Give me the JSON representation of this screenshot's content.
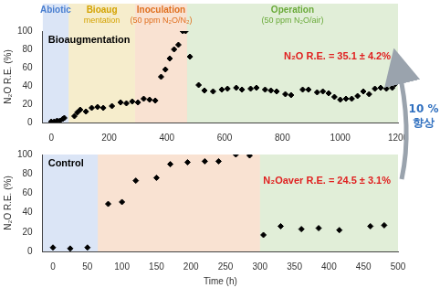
{
  "chart_data": [
    {
      "type": "scatter",
      "title": "Bioaugmentation",
      "y_label": "N₂O R.E. (%)",
      "annotation": "N₂O R.E. = 35.1 ± 4.2%",
      "phases": [
        {
          "name": [
            "Abiotic"
          ],
          "x": [
            -30,
            60
          ],
          "color": "#4a7fd0"
        },
        {
          "name": [
            "Bioaug",
            "mentation"
          ],
          "x": [
            60,
            290
          ],
          "color": "#d4a300"
        },
        {
          "name": [
            "Inoculation",
            "(50 ppm N₂O/N₂)"
          ],
          "x": [
            290,
            470
          ],
          "color": "#e07020"
        },
        {
          "name": [
            "Operation",
            "(50 ppm N₂O/air)"
          ],
          "x": [
            470,
            1200
          ],
          "color": "#6aaa3a"
        }
      ],
      "x": [
        0,
        10,
        20,
        30,
        40,
        45,
        80,
        90,
        100,
        120,
        140,
        160,
        180,
        210,
        240,
        260,
        280,
        300,
        320,
        340,
        360,
        380,
        395,
        410,
        425,
        440,
        455,
        465,
        480,
        510,
        530,
        560,
        590,
        610,
        640,
        660,
        690,
        710,
        740,
        760,
        780,
        810,
        830,
        870,
        890,
        920,
        940,
        960,
        980,
        1000,
        1020,
        1040,
        1060,
        1080,
        1100,
        1120,
        1140,
        1160,
        1180,
        1190
      ],
      "values": [
        1,
        1,
        2,
        2,
        4,
        5,
        7,
        11,
        14,
        12,
        16,
        17,
        16,
        18,
        22,
        21,
        23,
        22,
        26,
        25,
        24,
        50,
        58,
        70,
        80,
        85,
        100,
        100,
        72,
        41,
        35,
        34,
        36,
        37,
        38,
        36,
        37,
        38,
        36,
        35,
        34,
        31,
        30,
        36,
        36,
        33,
        34,
        32,
        28,
        25,
        26,
        26,
        29,
        34,
        31,
        37,
        38,
        37,
        38,
        42
      ],
      "color": "#000000",
      "marker": "diamond",
      "xlim": [
        -30,
        1200
      ],
      "xticks": [
        0,
        200,
        400,
        600,
        800,
        1000,
        1200
      ],
      "ylim": [
        0,
        100
      ],
      "yticks": [
        0,
        20,
        40,
        60,
        80,
        100
      ],
      "grid": false
    },
    {
      "type": "scatter",
      "title": "Control",
      "y_label": "N₂O R.E. (%)",
      "x_label": "Time (h)",
      "annotation": "N₂Oaver R.E. = 24.5 ± 3.1%",
      "phases": [
        {
          "x": [
            -15,
            65
          ],
          "color": "#4a7fd0"
        },
        {
          "x": [
            65,
            300
          ],
          "color": "#e07020"
        },
        {
          "x": [
            300,
            500
          ],
          "color": "#6aaa3a"
        }
      ],
      "x": [
        0,
        25,
        50,
        80,
        100,
        120,
        150,
        170,
        195,
        220,
        240,
        265,
        285,
        305,
        330,
        360,
        385,
        415,
        460,
        480
      ],
      "values": [
        4,
        3,
        4,
        49,
        51,
        73,
        76,
        90,
        92,
        93,
        93,
        100,
        99,
        17,
        26,
        23,
        24,
        22,
        26,
        27
      ],
      "color": "#000000",
      "marker": "diamond",
      "xlim": [
        -15,
        500
      ],
      "xticks": [
        0,
        50,
        100,
        150,
        200,
        250,
        300,
        350,
        400,
        450,
        500
      ],
      "ylim": [
        0,
        100
      ],
      "yticks": [
        0,
        20,
        40,
        60,
        80,
        100
      ],
      "grid": false
    }
  ],
  "comparison_label": "10 % 향상"
}
